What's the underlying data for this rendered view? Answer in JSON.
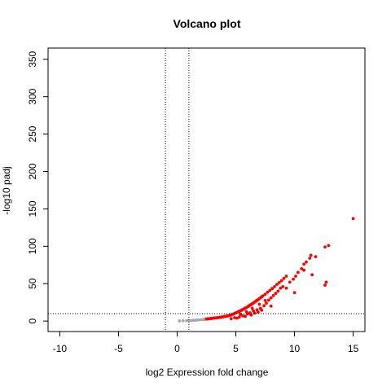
{
  "chart_data": {
    "type": "scatter",
    "title": "Volcano plot",
    "xlabel": "log2 Expression fold change",
    "ylabel": "-log10 padj",
    "xlim": [
      -11,
      16
    ],
    "ylim": [
      -14,
      365
    ],
    "x_ticks": [
      -10,
      -5,
      0,
      5,
      10,
      15
    ],
    "x_tick_labels": [
      "-10",
      "-5",
      "0",
      "5",
      "10",
      "15"
    ],
    "y_ticks": [
      0,
      50,
      100,
      150,
      200,
      250,
      300,
      350
    ],
    "y_tick_labels": [
      "0",
      "50",
      "100",
      "150",
      "200",
      "250",
      "300",
      "350"
    ],
    "thresholds": {
      "log2fc": [
        -1,
        1
      ],
      "padj_neglog10": 10
    },
    "colors": {
      "significant": "#ff0000",
      "not_significant": "#a8a8a8",
      "threshold_line": "#000000"
    },
    "series": [
      {
        "color": "#a8a8a8",
        "points": [
          [
            0.2,
            0.2
          ],
          [
            0.5,
            0.4
          ],
          [
            0.8,
            0.5
          ],
          [
            1.0,
            0.6
          ],
          [
            1.2,
            0.8
          ],
          [
            1.4,
            1.0
          ],
          [
            1.6,
            1.2
          ],
          [
            1.8,
            1.5
          ],
          [
            2.0,
            1.8
          ],
          [
            2.2,
            2.0
          ],
          [
            2.3,
            2.3
          ],
          [
            2.4,
            2.6
          ]
        ]
      },
      {
        "color": "#ff0000",
        "points": [
          [
            2.5,
            2.8
          ],
          [
            2.6,
            3.0
          ],
          [
            2.7,
            3.1
          ],
          [
            2.8,
            3.3
          ],
          [
            2.9,
            3.5
          ],
          [
            3.0,
            3.6
          ],
          [
            3.1,
            3.9
          ],
          [
            3.2,
            4.1
          ],
          [
            3.3,
            4.2
          ],
          [
            3.4,
            4.5
          ],
          [
            3.5,
            4.6
          ],
          [
            3.6,
            4.9
          ],
          [
            3.7,
            5.1
          ],
          [
            3.8,
            5.4
          ],
          [
            3.9,
            5.6
          ],
          [
            4.0,
            6.0
          ],
          [
            4.1,
            6.2
          ],
          [
            4.2,
            6.6
          ],
          [
            4.3,
            6.9
          ],
          [
            4.4,
            7.3
          ],
          [
            4.5,
            7.7
          ],
          [
            4.6,
            8.2
          ],
          [
            4.7,
            8.8
          ],
          [
            4.8,
            9.5
          ],
          [
            4.9,
            10.2
          ],
          [
            5.0,
            11.0
          ],
          [
            5.1,
            11.7
          ],
          [
            5.2,
            12.4
          ],
          [
            5.3,
            13.0
          ],
          [
            5.4,
            13.9
          ],
          [
            5.5,
            14.5
          ],
          [
            5.6,
            15.5
          ],
          [
            5.7,
            16.3
          ],
          [
            5.8,
            17.3
          ],
          [
            5.9,
            18.0
          ],
          [
            6.0,
            19.0
          ],
          [
            6.1,
            20.0
          ],
          [
            6.2,
            21.2
          ],
          [
            6.3,
            22.0
          ],
          [
            6.4,
            23.3
          ],
          [
            6.5,
            24.1
          ],
          [
            6.6,
            25.4
          ],
          [
            6.7,
            26.4
          ],
          [
            6.8,
            27.7
          ],
          [
            6.9,
            28.6
          ],
          [
            7.0,
            30.0
          ],
          [
            7.1,
            31.0
          ],
          [
            7.2,
            32.3
          ],
          [
            7.3,
            33.6
          ],
          [
            7.5,
            35.8
          ],
          [
            7.7,
            38.5
          ],
          [
            7.9,
            41.0
          ],
          [
            8.1,
            43.5
          ],
          [
            8.3,
            46.0
          ],
          [
            8.5,
            49.0
          ],
          [
            8.7,
            51.5
          ],
          [
            8.9,
            54.0
          ],
          [
            9.1,
            57.0
          ],
          [
            9.3,
            60.0
          ],
          [
            4.6,
            3.2
          ],
          [
            4.9,
            4.5
          ],
          [
            5.1,
            3.8
          ],
          [
            5.3,
            5.5
          ],
          [
            5.6,
            7.0
          ],
          [
            5.8,
            6.2
          ],
          [
            6.0,
            9.5
          ],
          [
            6.2,
            11.0
          ],
          [
            6.3,
            8.0
          ],
          [
            6.5,
            13.5
          ],
          [
            6.6,
            10.5
          ],
          [
            6.8,
            15.0
          ],
          [
            6.9,
            12.0
          ],
          [
            7.1,
            17.0
          ],
          [
            7.2,
            14.5
          ],
          [
            7.4,
            20.5
          ],
          [
            7.6,
            24.0
          ],
          [
            7.8,
            28.0
          ],
          [
            8.0,
            31.0
          ],
          [
            8.2,
            34.0
          ],
          [
            8.4,
            37.0
          ],
          [
            8.6,
            40.0
          ],
          [
            8.8,
            44.0
          ],
          [
            9.0,
            46.0
          ],
          [
            5.4,
            9.0
          ],
          [
            5.9,
            12.5
          ],
          [
            6.4,
            17.0
          ],
          [
            7.0,
            22.5
          ],
          [
            7.5,
            27.5
          ],
          [
            8.0,
            20.0
          ],
          [
            9.3,
            44.0
          ],
          [
            9.6,
            52.0
          ],
          [
            9.9,
            56.0
          ],
          [
            10.1,
            60.0
          ],
          [
            10.3,
            65.0
          ],
          [
            10.6,
            70.0
          ],
          [
            10.8,
            76.0
          ],
          [
            11.0,
            79.0
          ],
          [
            11.3,
            84.0
          ],
          [
            11.4,
            88.0
          ],
          [
            11.8,
            86.0
          ],
          [
            12.6,
            99.0
          ],
          [
            12.9,
            101.0
          ],
          [
            10.0,
            38.0
          ],
          [
            10.8,
            68.0
          ],
          [
            11.5,
            62.0
          ],
          [
            12.6,
            48.0
          ],
          [
            12.7,
            52.0
          ],
          [
            15.0,
            137.0
          ]
        ]
      }
    ]
  }
}
